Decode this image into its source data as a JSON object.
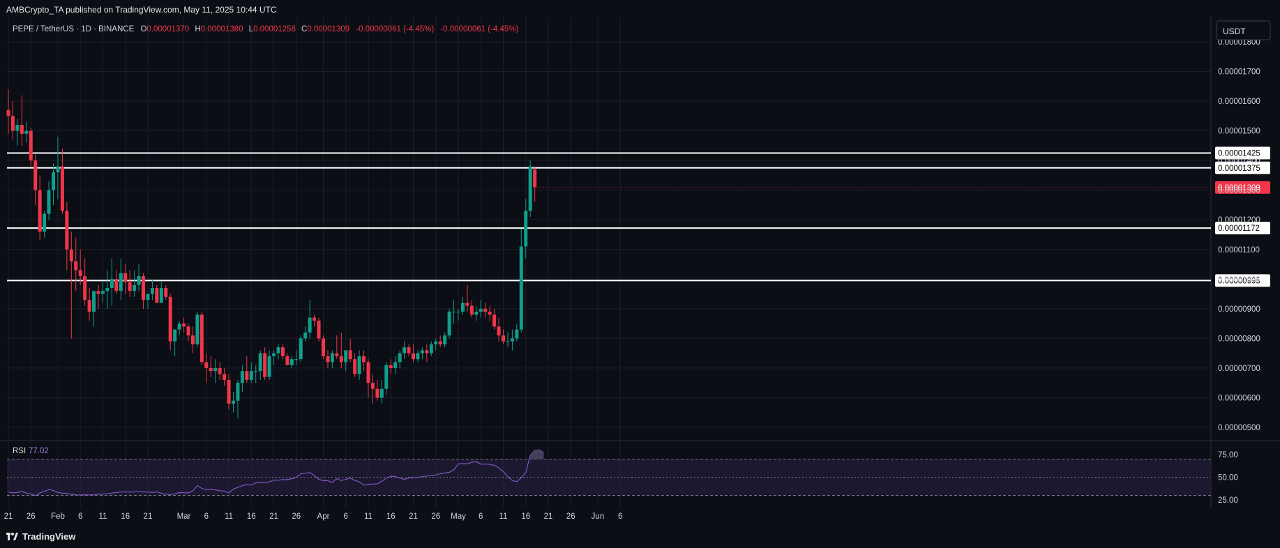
{
  "header": {
    "publisher_text": "AMBCrypto_TA published on TradingView.com, May 11, 2025 10:44 UTC"
  },
  "legend": {
    "symbol": "PEPE / TetherUS · 1D · BINANCE",
    "o_label": "O",
    "o_value": "0.00001370",
    "h_label": "H",
    "h_value": "0.00001380",
    "l_label": "L",
    "l_value": "0.00001258",
    "c_label": "C",
    "c_value": "0.00001309",
    "change": "-0.00000061 (-4.45%)",
    "change2": "-0.00000061 (-4.45%)"
  },
  "currency_button": "USDT",
  "footer": {
    "brand": "TradingView"
  },
  "colors": {
    "up": "#0f9f8a",
    "down": "#f0364a",
    "bg": "#0c0e15",
    "rsi_line": "#7e57c2",
    "rsi_fill": "#2a2145",
    "level_line": "#ffffff"
  },
  "chart_data": [
    {
      "type": "candlestick",
      "title": "PEPE / TetherUS · 1D · BINANCE",
      "ylim": [
        4.7e-06,
        1.86e-05
      ],
      "y_ticks": [
        "0.00001800",
        "0.00001700",
        "0.00001600",
        "0.00001500",
        "0.00001400",
        "0.00001300",
        "0.00001200",
        "0.00001100",
        "0.00001000",
        "0.00000900",
        "0.00000800",
        "0.00000700",
        "0.00000600",
        "0.00000500"
      ],
      "y_tick_values": [
        1.8e-05,
        1.7e-05,
        1.6e-05,
        1.5e-05,
        1.4e-05,
        1.3e-05,
        1.2e-05,
        1.1e-05,
        1e-05,
        9e-06,
        8e-06,
        7e-06,
        6e-06,
        5e-06
      ],
      "x_tick_labels": [
        "21",
        "26",
        "Feb",
        "6",
        "11",
        "16",
        "21",
        "Mar",
        "6",
        "11",
        "16",
        "21",
        "26",
        "Apr",
        "6",
        "11",
        "16",
        "21",
        "26",
        "May",
        "6",
        "11",
        "16",
        "21",
        "26",
        "Jun",
        "6"
      ],
      "horizontal_levels": [
        {
          "value": 1.425e-05,
          "label": "0.00001425"
        },
        {
          "value": 1.375e-05,
          "label": "0.00001375"
        },
        {
          "value": 1.172e-05,
          "label": "0.00001172"
        },
        {
          "value": 9.95e-06,
          "label": "0.00000995"
        }
      ],
      "last_price": {
        "value": 1.309e-05,
        "label": "0.00001309"
      },
      "start_date": "Jan 21",
      "candles": [
        [
          15.7,
          16.4,
          14.9,
          15.5
        ],
        [
          15.5,
          16.0,
          14.7,
          15.0
        ],
        [
          15.0,
          15.4,
          14.5,
          15.2
        ],
        [
          15.2,
          16.2,
          14.5,
          14.9
        ],
        [
          14.9,
          15.3,
          14.6,
          15.0
        ],
        [
          15.0,
          15.1,
          13.8,
          14.0
        ],
        [
          14.0,
          14.2,
          12.5,
          13.0
        ],
        [
          13.0,
          13.5,
          11.3,
          11.6
        ],
        [
          11.6,
          12.3,
          11.4,
          12.2
        ],
        [
          12.2,
          13.3,
          12.0,
          13.0
        ],
        [
          13.0,
          13.9,
          12.5,
          13.6
        ],
        [
          13.6,
          14.8,
          12.7,
          13.8
        ],
        [
          13.8,
          14.4,
          12.2,
          12.3
        ],
        [
          12.3,
          12.6,
          10.3,
          11.0
        ],
        [
          11.0,
          11.6,
          8.0,
          10.6
        ],
        [
          10.6,
          11.4,
          9.6,
          10.3
        ],
        [
          10.3,
          11.0,
          9.8,
          10.1
        ],
        [
          10.1,
          10.7,
          9.1,
          9.3
        ],
        [
          9.3,
          9.7,
          8.6,
          8.9
        ],
        [
          8.9,
          9.6,
          8.4,
          9.6
        ],
        [
          9.6,
          9.8,
          9.0,
          9.5
        ],
        [
          9.5,
          9.9,
          9.2,
          9.6
        ],
        [
          9.6,
          10.3,
          9.0,
          9.7
        ],
        [
          9.7,
          10.7,
          9.1,
          10.0
        ],
        [
          10.0,
          10.3,
          9.5,
          9.6
        ],
        [
          9.6,
          10.7,
          9.3,
          10.2
        ],
        [
          10.2,
          10.5,
          9.5,
          9.9
        ],
        [
          9.9,
          10.3,
          9.4,
          9.6
        ],
        [
          9.6,
          10.3,
          9.4,
          9.8
        ],
        [
          9.8,
          10.5,
          9.6,
          10.1
        ],
        [
          10.1,
          10.2,
          9.0,
          9.3
        ],
        [
          9.3,
          9.5,
          9.0,
          9.5
        ],
        [
          9.5,
          10.0,
          9.3,
          9.7
        ],
        [
          9.7,
          9.8,
          9.2,
          9.2
        ],
        [
          9.2,
          9.9,
          9.2,
          9.7
        ],
        [
          9.7,
          9.8,
          9.3,
          9.4
        ],
        [
          9.4,
          9.5,
          7.6,
          7.9
        ],
        [
          7.9,
          8.3,
          7.4,
          8.3
        ],
        [
          8.3,
          8.6,
          8.1,
          8.5
        ],
        [
          8.5,
          8.7,
          8.2,
          8.4
        ],
        [
          8.4,
          8.5,
          7.9,
          8.1
        ],
        [
          8.1,
          8.4,
          7.5,
          7.8
        ],
        [
          7.8,
          8.9,
          7.7,
          8.8
        ],
        [
          8.8,
          8.9,
          7.1,
          7.2
        ],
        [
          7.2,
          7.5,
          6.5,
          7.0
        ],
        [
          7.0,
          7.4,
          6.7,
          6.9
        ],
        [
          6.9,
          7.3,
          6.5,
          7.0
        ],
        [
          7.0,
          7.2,
          6.6,
          6.8
        ],
        [
          6.8,
          7.0,
          6.4,
          6.6
        ],
        [
          6.6,
          6.8,
          5.6,
          5.8
        ],
        [
          5.8,
          6.2,
          5.5,
          5.9
        ],
        [
          5.9,
          6.6,
          5.3,
          6.5
        ],
        [
          6.5,
          7.1,
          6.2,
          6.9
        ],
        [
          6.9,
          7.4,
          6.5,
          6.6
        ],
        [
          6.6,
          7.2,
          6.5,
          6.9
        ],
        [
          6.9,
          7.1,
          6.5,
          6.9
        ],
        [
          6.9,
          7.6,
          6.6,
          7.5
        ],
        [
          7.5,
          7.7,
          6.6,
          6.7
        ],
        [
          6.7,
          7.6,
          6.6,
          7.4
        ],
        [
          7.4,
          7.6,
          7.1,
          7.5
        ],
        [
          7.5,
          7.8,
          7.3,
          7.7
        ],
        [
          7.7,
          7.8,
          7.3,
          7.4
        ],
        [
          7.4,
          7.5,
          7.1,
          7.1
        ],
        [
          7.1,
          7.4,
          7.0,
          7.3
        ],
        [
          7.3,
          7.6,
          7.1,
          7.3
        ],
        [
          7.3,
          8.1,
          7.2,
          8.0
        ],
        [
          8.0,
          8.4,
          7.9,
          8.2
        ],
        [
          8.2,
          9.3,
          8.0,
          8.7
        ],
        [
          8.7,
          8.8,
          8.4,
          8.6
        ],
        [
          8.6,
          8.7,
          7.9,
          8.0
        ],
        [
          8.0,
          8.1,
          7.3,
          7.4
        ],
        [
          7.4,
          7.6,
          7.0,
          7.2
        ],
        [
          7.2,
          7.6,
          7.0,
          7.5
        ],
        [
          7.5,
          8.1,
          7.3,
          7.4
        ],
        [
          7.4,
          8.2,
          7.0,
          7.2
        ],
        [
          7.2,
          7.6,
          6.9,
          7.6
        ],
        [
          7.6,
          8.0,
          7.2,
          7.3
        ],
        [
          7.3,
          7.5,
          6.7,
          6.8
        ],
        [
          6.8,
          7.6,
          6.6,
          7.4
        ],
        [
          7.4,
          7.6,
          6.9,
          7.2
        ],
        [
          7.2,
          7.3,
          6.0,
          6.5
        ],
        [
          6.5,
          6.8,
          5.8,
          6.3
        ],
        [
          6.3,
          6.6,
          5.9,
          6.0
        ],
        [
          6.0,
          6.6,
          5.8,
          6.3
        ],
        [
          6.3,
          7.2,
          6.1,
          7.1
        ],
        [
          7.1,
          7.3,
          6.8,
          7.0
        ],
        [
          7.0,
          7.4,
          6.8,
          7.2
        ],
        [
          7.2,
          7.6,
          7.0,
          7.5
        ],
        [
          7.5,
          7.9,
          7.3,
          7.7
        ],
        [
          7.7,
          7.8,
          7.4,
          7.5
        ],
        [
          7.5,
          7.8,
          7.2,
          7.3
        ],
        [
          7.3,
          7.6,
          7.2,
          7.5
        ],
        [
          7.5,
          7.7,
          7.3,
          7.6
        ],
        [
          7.6,
          7.8,
          7.2,
          7.5
        ],
        [
          7.5,
          7.9,
          7.4,
          7.8
        ],
        [
          7.8,
          8.0,
          7.6,
          7.9
        ],
        [
          7.9,
          8.1,
          7.7,
          7.8
        ],
        [
          7.8,
          8.2,
          7.7,
          8.1
        ],
        [
          8.1,
          9.0,
          8.0,
          8.9
        ],
        [
          8.9,
          9.3,
          8.5,
          8.9
        ],
        [
          8.9,
          9.0,
          8.6,
          8.9
        ],
        [
          8.9,
          9.4,
          8.8,
          9.2
        ],
        [
          9.2,
          9.8,
          8.9,
          9.1
        ],
        [
          9.1,
          9.3,
          8.7,
          8.8
        ],
        [
          8.8,
          9.1,
          8.6,
          8.9
        ],
        [
          8.9,
          9.3,
          8.7,
          9.0
        ],
        [
          9.0,
          9.2,
          8.7,
          8.9
        ],
        [
          8.9,
          9.1,
          8.6,
          8.8
        ],
        [
          8.8,
          9.0,
          8.3,
          8.4
        ],
        [
          8.4,
          8.7,
          7.9,
          8.1
        ],
        [
          8.1,
          8.3,
          7.8,
          7.9
        ],
        [
          7.9,
          8.2,
          7.7,
          7.9
        ],
        [
          7.9,
          8.3,
          7.6,
          8.0
        ],
        [
          8.0,
          8.5,
          7.9,
          8.3
        ],
        [
          8.3,
          11.7,
          8.2,
          11.1
        ],
        [
          11.1,
          12.7,
          10.7,
          12.3
        ],
        [
          12.3,
          14.0,
          12.1,
          13.8
        ],
        [
          13.7,
          13.8,
          12.6,
          13.1
        ]
      ]
    },
    {
      "type": "line",
      "title": "RSI",
      "label": "RSI",
      "current_value": "77.02",
      "ylim": [
        25,
        85
      ],
      "y_ticks": [
        "75.00",
        "50.00",
        "25.00"
      ],
      "y_tick_values": [
        75,
        50,
        25
      ],
      "bands": [
        70,
        50,
        30
      ],
      "values": [
        33.7,
        32.8,
        33.2,
        34.0,
        32.6,
        31.6,
        29.6,
        32.6,
        34.5,
        36.4,
        35.5,
        33.2,
        32.4,
        32.0,
        31.2,
        30.5,
        30.4,
        30.6,
        30.5,
        30.6,
        31.3,
        31.4,
        31.8,
        32.4,
        33.2,
        33.7,
        33.7,
        33.7,
        33.7,
        34.3,
        33.8,
        33.8,
        33.2,
        33.7,
        32.4,
        31.2,
        30.9,
        31.7,
        33.1,
        32.9,
        32.6,
        34.9,
        40.8,
        37.6,
        36.3,
        36.6,
        36.0,
        35.1,
        34.8,
        32.7,
        36.9,
        38.8,
        40.6,
        41.9,
        41.4,
        43.7,
        44.2,
        44.1,
        44.9,
        46.9,
        46.7,
        47.4,
        47.4,
        48.3,
        50.0,
        53.7,
        54.4,
        55.2,
        51.6,
        47.8,
        46.2,
        46.2,
        44.2,
        48.5,
        46.3,
        47.6,
        49.2,
        46.4,
        45.0,
        41.2,
        42.3,
        42.5,
        42.7,
        45.6,
        49.0,
        51.0,
        50.9,
        49.1,
        47.6,
        49.3,
        49.4,
        49.9,
        50.6,
        51.3,
        51.8,
        52.5,
        53.8,
        54.8,
        55.4,
        58.1,
        64.8,
        65.1,
        64.7,
        66.5,
        67.0,
        64.5,
        64.5,
        64.2,
        63.1,
        60.3,
        56.3,
        50.6,
        46.4,
        45.1,
        49.6,
        55.2,
        74.2,
        79.7,
        80.2,
        77.0
      ]
    }
  ]
}
